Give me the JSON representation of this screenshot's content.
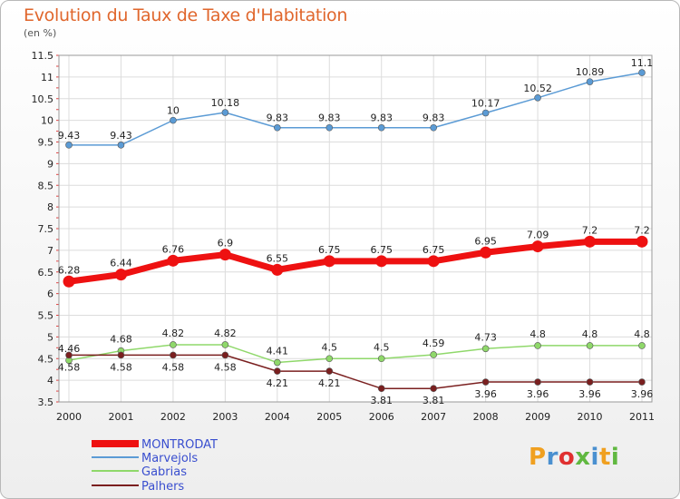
{
  "chart_data": {
    "type": "line",
    "title": "Evolution du Taux de Taxe d'Habitation",
    "ylabel": "(en %)",
    "xlabel": "",
    "x": [
      "2000",
      "2001",
      "2002",
      "2003",
      "2004",
      "2005",
      "2006",
      "2007",
      "2008",
      "2009",
      "2010",
      "2011"
    ],
    "ylim": [
      3.5,
      11.5
    ],
    "yticks": [
      "3.5",
      "4",
      "4.5",
      "5",
      "5.5",
      "6",
      "6.5",
      "7",
      "7.5",
      "8",
      "8.5",
      "9",
      "9.5",
      "10",
      "10.5",
      "11",
      "11.5"
    ],
    "grid": true,
    "legend_position": "bottom-left",
    "series": [
      {
        "name": "MONTRODAT",
        "color": "#ee1111",
        "values": [
          6.28,
          6.44,
          6.76,
          6.9,
          6.55,
          6.75,
          6.75,
          6.75,
          6.95,
          7.09,
          7.2,
          7.2
        ],
        "labels": [
          "6.28",
          "6.44",
          "6.76",
          "6.9",
          "6.55",
          "6.75",
          "6.75",
          "6.75",
          "6.95",
          "7.09",
          "7.2",
          "7.2"
        ]
      },
      {
        "name": "Marvejols",
        "color": "#5b9bd5",
        "values": [
          9.43,
          9.43,
          10,
          10.18,
          9.83,
          9.83,
          9.83,
          9.83,
          10.17,
          10.52,
          10.89,
          11.1
        ],
        "labels": [
          "9.43",
          "9.43",
          "10",
          "10.18",
          "9.83",
          "9.83",
          "9.83",
          "9.83",
          "10.17",
          "10.52",
          "10.89",
          "11.1"
        ]
      },
      {
        "name": "Gabrias",
        "color": "#8fd86a",
        "values": [
          4.46,
          4.68,
          4.82,
          4.82,
          4.41,
          4.5,
          4.5,
          4.59,
          4.73,
          4.8,
          4.8,
          4.8
        ],
        "labels": [
          "4.46",
          "4.68",
          "4.82",
          "4.82",
          "4.41",
          "4.5",
          "4.5",
          "4.59",
          "4.73",
          "4.8",
          "4.8",
          "4.8"
        ]
      },
      {
        "name": "Palhers",
        "color": "#7a1f1f",
        "values": [
          4.58,
          4.58,
          4.58,
          4.58,
          4.21,
          4.21,
          3.81,
          3.81,
          3.96,
          3.96,
          3.96,
          3.96
        ],
        "labels": [
          "4.58",
          "4.58",
          "4.58",
          "4.58",
          "4.21",
          "4.21",
          "3.81",
          "3.81",
          "3.96",
          "3.96",
          "3.96",
          "3.96"
        ]
      }
    ]
  },
  "logo": {
    "letters": [
      "P",
      "r",
      "o",
      "x",
      "i",
      "t",
      "i"
    ],
    "colors": [
      "#f0a020",
      "#4a90d0",
      "#e03030",
      "#60b840",
      "#4a90d0",
      "#f0a020",
      "#60b840"
    ]
  }
}
